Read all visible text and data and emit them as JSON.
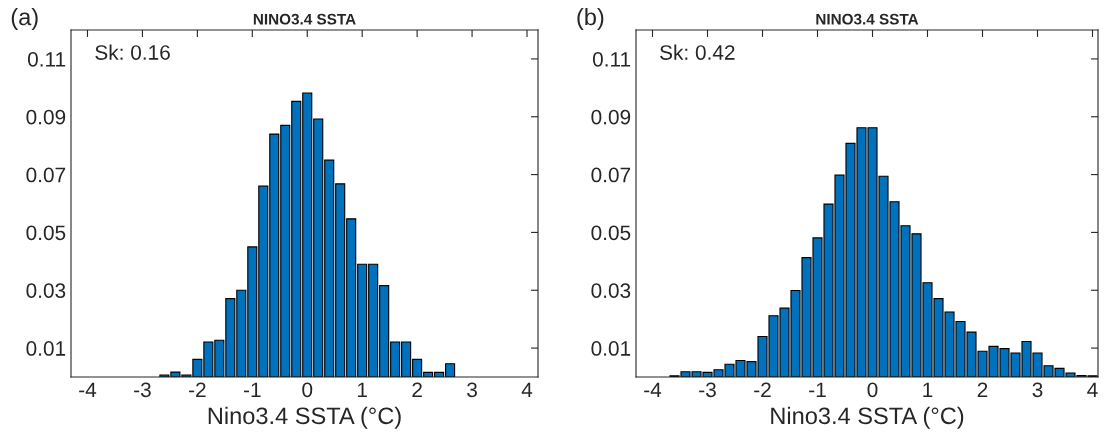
{
  "chart_data": [
    {
      "type": "histogram",
      "title": "NINO3.4 SSTA",
      "xlabel": "Nino3.4 SSTA (°C)",
      "annotations": [
        "(a)",
        "Sk: 0.16"
      ],
      "color": "#0072bd",
      "bins": [
        -2.7,
        -2.5,
        -2.3,
        -2.1,
        -1.9,
        -1.7,
        -1.5,
        -1.3,
        -1.1,
        -0.9,
        -0.7,
        -0.5,
        -0.3,
        -0.1,
        0.1,
        0.3,
        0.5,
        0.7,
        0.9,
        1.1,
        1.3,
        1.5,
        1.7,
        1.9,
        2.1,
        2.3,
        2.5,
        2.7
      ],
      "values": [
        0.0007,
        0.0017,
        0.0007,
        0.0061,
        0.0121,
        0.0127,
        0.0271,
        0.03,
        0.045,
        0.066,
        0.084,
        0.087,
        0.0953,
        0.0982,
        0.0892,
        0.075,
        0.0668,
        0.0547,
        0.039,
        0.039,
        0.0316,
        0.0121,
        0.0121,
        0.0061,
        0.0016,
        0.0016,
        0.0046
      ],
      "xlim": [
        -4.3,
        4.2
      ],
      "xticks": [
        -4,
        -3,
        -2,
        -1,
        0,
        1,
        2,
        3,
        4
      ],
      "ylim": [
        0,
        0.12
      ],
      "yticks": [
        0.01,
        0.03,
        0.05,
        0.07,
        0.09,
        0.11
      ],
      "grid": false
    },
    {
      "type": "histogram",
      "title": "NINO3.4 SSTA",
      "xlabel": "Nino3.4 SSTA (°C)",
      "annotations": [
        "(b)",
        "Sk: 0.42"
      ],
      "color": "#0072bd",
      "bins": [
        -3.7,
        -3.5,
        -3.3,
        -3.1,
        -2.9,
        -2.7,
        -2.5,
        -2.3,
        -2.1,
        -1.9,
        -1.7,
        -1.5,
        -1.3,
        -1.1,
        -0.9,
        -0.7,
        -0.5,
        -0.3,
        -0.1,
        0.1,
        0.3,
        0.5,
        0.7,
        0.9,
        1.1,
        1.3,
        1.5,
        1.7,
        1.9,
        2.1,
        2.3,
        2.5,
        2.7,
        2.9,
        3.1,
        3.3,
        3.5,
        3.7,
        3.9,
        4.1
      ],
      "values": [
        0.0004,
        0.0018,
        0.0018,
        0.0016,
        0.0025,
        0.0044,
        0.0057,
        0.0053,
        0.014,
        0.0212,
        0.0238,
        0.0299,
        0.0413,
        0.0481,
        0.0598,
        0.0698,
        0.0808,
        0.0862,
        0.0862,
        0.0694,
        0.0606,
        0.0523,
        0.0495,
        0.0326,
        0.0271,
        0.0225,
        0.0192,
        0.0155,
        0.0089,
        0.0106,
        0.0098,
        0.0083,
        0.0123,
        0.0083,
        0.0039,
        0.003,
        0.0014,
        0.0005,
        0.0004
      ],
      "xlim": [
        -4.3,
        4.1
      ],
      "xticks": [
        -4,
        -3,
        -2,
        -1,
        0,
        1,
        2,
        3,
        4
      ],
      "ylim": [
        0,
        0.12
      ],
      "yticks": [
        0.01,
        0.03,
        0.05,
        0.07,
        0.09,
        0.11
      ],
      "grid": false
    }
  ]
}
